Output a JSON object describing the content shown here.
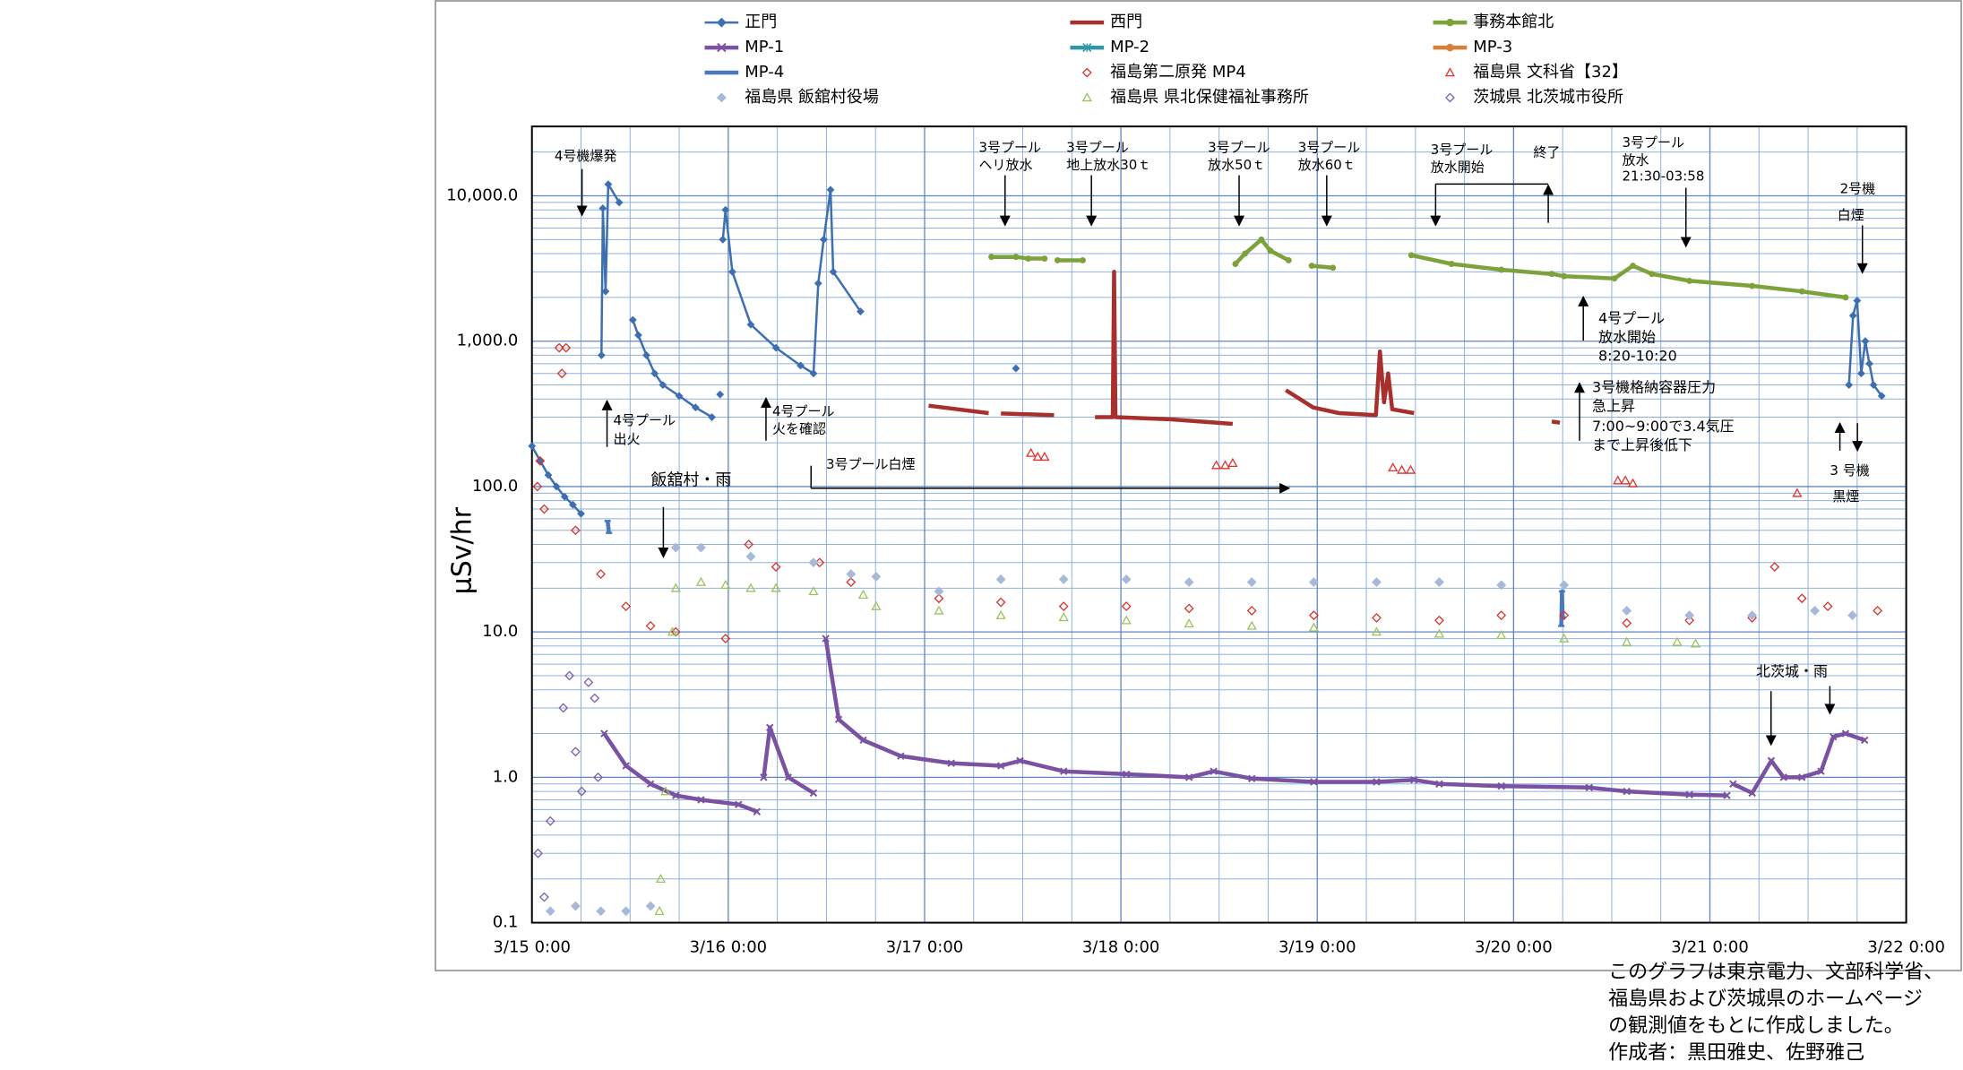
{
  "chart_data": {
    "type": "line",
    "ylabel": "μSv/hr",
    "log_y": true,
    "grid": true,
    "xlim": [
      "3/15 0:00",
      "3/22 0:00"
    ],
    "xticks": [
      "3/15 0:00",
      "3/16 0:00",
      "3/17 0:00",
      "3/18 0:00",
      "3/19 0:00",
      "3/20 0:00",
      "3/21 0:00",
      "3/22 0:00"
    ],
    "xminor": [
      "3/15 6:00",
      "3/15 12:00",
      "3/15 18:00",
      "3/16 6:00",
      "3/16 12:00",
      "3/16 18:00",
      "3/17 6:00",
      "3/17 12:00",
      "3/17 18:00",
      "3/18 6:00",
      "3/18 12:00",
      "3/18 18:00",
      "3/19 6:00",
      "3/19 12:00",
      "3/19 18:00",
      "3/20 6:00",
      "3/20 12:00",
      "3/20 18:00",
      "3/21 6:00",
      "3/21 12:00",
      "3/21 18:00"
    ],
    "ylim": [
      0.1,
      30000
    ],
    "yticks": [
      {
        "value": 0.1,
        "label": "0.1"
      },
      {
        "value": 1,
        "label": "1.0"
      },
      {
        "value": 10,
        "label": "10.0"
      },
      {
        "value": 100,
        "label": "100.0"
      },
      {
        "value": 1000,
        "label": "1,000.0"
      },
      {
        "value": 10000,
        "label": "10,000.0"
      }
    ],
    "yminor": [
      0.2,
      0.3,
      0.4,
      0.5,
      0.6,
      0.7,
      0.8,
      0.9,
      2,
      3,
      4,
      5,
      6,
      7,
      8,
      9,
      20,
      30,
      40,
      50,
      60,
      70,
      80,
      90,
      200,
      300,
      400,
      500,
      600,
      700,
      800,
      900,
      2000,
      3000,
      4000,
      5000,
      6000,
      7000,
      8000,
      9000,
      20000
    ],
    "series": [
      {
        "name": "正門",
        "color": "#3d6fb1",
        "line": true,
        "marker": "diamond",
        "hollow": false,
        "x": [
          "3/15 0:00",
          "3/15 1:00",
          "3/15 2:00",
          "3/15 3:00",
          "3/15 4:00",
          "3/15 5:00",
          "3/15 6:00",
          null,
          "3/15 8:30",
          "3/15 8:40",
          "3/15 9:00",
          "3/15 9:20",
          "3/15 10:40",
          null,
          "3/15 12:20",
          "3/15 13:00",
          "3/15 14:00",
          "3/15 15:00",
          "3/15 16:00",
          "3/15 18:00",
          "3/15 20:00",
          "3/15 22:00",
          null,
          "3/15 23:00",
          null,
          "3/15 23:20",
          "3/15 23:40",
          "3/16 0:30",
          "3/16 2:45",
          "3/16 5:50",
          "3/16 8:50",
          "3/16 10:25",
          "3/16 11:00",
          "3/16 11:40",
          "3/16 12:30",
          "3/16 12:50",
          "3/16 16:10",
          null,
          "3/17 11:10",
          null,
          "3/21 17:00",
          "3/21 17:30",
          "3/21 18:00",
          "3/21 18:30",
          "3/21 19:00",
          "3/21 19:30",
          "3/21 20:00",
          "3/21 21:00"
        ],
        "values": [
          190,
          150,
          120,
          100,
          85,
          75,
          65,
          null,
          800,
          8200,
          2200,
          12000,
          9000,
          null,
          1400,
          1100,
          800,
          600,
          500,
          420,
          350,
          300,
          null,
          430,
          null,
          5000,
          8000,
          3000,
          1300,
          900,
          680,
          600,
          2500,
          5000,
          11000,
          3000,
          1600,
          null,
          650,
          null,
          500,
          1500,
          1900,
          600,
          1000,
          700,
          500,
          420
        ]
      },
      {
        "name": "西門",
        "color": "#a7302c",
        "line": true,
        "marker": "none",
        "hollow": false,
        "x": [
          "3/17 0:30",
          "3/17 4:00",
          "3/17 7:50",
          null,
          "3/17 9:20",
          "3/17 15:50",
          null,
          "3/17 20:50",
          "3/17 23:00",
          "3/17 23:10",
          "3/17 23:20",
          "3/18 6:00",
          "3/18 13:40",
          null,
          "3/18 20:10",
          "3/18 23:30",
          "3/19 2:40",
          "3/19 7:10",
          "3/19 7:40",
          "3/19 8:10",
          "3/19 8:40",
          "3/19 9:10",
          "3/19 11:50",
          null,
          "3/20 4:40",
          "3/20 5:40"
        ],
        "values": [
          360,
          340,
          320,
          null,
          318,
          310,
          null,
          300,
          300,
          3000,
          300,
          290,
          270,
          null,
          460,
          350,
          320,
          310,
          850,
          380,
          600,
          340,
          320,
          null,
          280,
          275
        ]
      },
      {
        "name": "事務本館北",
        "color": "#7ea23b",
        "line": true,
        "marker": "circle",
        "hollow": false,
        "x": [
          "3/17 8:10",
          "3/17 11:10",
          "3/17 12:40",
          "3/17 14:40",
          null,
          "3/17 16:15",
          "3/17 19:20",
          null,
          "3/18 14:00",
          "3/18 15:10",
          "3/18 17:10",
          "3/18 18:15",
          "3/18 20:30",
          null,
          "3/18 23:20",
          "3/19 1:55",
          null,
          "3/19 11:30",
          "3/19 16:25",
          "3/19 22:30",
          "3/20 4:40",
          "3/20 6:10",
          "3/20 12:20",
          "3/20 14:35",
          "3/20 16:55",
          "3/20 21:30",
          "3/21 5:10",
          "3/21 11:15",
          "3/21 16:35"
        ],
        "values": [
          3800,
          3800,
          3700,
          3700,
          null,
          3600,
          3600,
          null,
          3400,
          4000,
          5000,
          4200,
          3600,
          null,
          3300,
          3200,
          null,
          3900,
          3400,
          3100,
          2900,
          2800,
          2700,
          3300,
          2900,
          2600,
          2400,
          2200,
          2000
        ]
      },
      {
        "name": "MP-1",
        "color": "#7a52a1",
        "line": true,
        "marker": "x",
        "hollow": false,
        "x": [
          "3/15 8:50",
          "3/15 11:30",
          "3/15 14:30",
          "3/15 17:35",
          "3/15 20:40",
          "3/16 1:15",
          "3/16 3:30",
          null,
          "3/16 4:20",
          "3/16 5:05",
          "3/16 7:20",
          "3/16 10:25",
          null,
          "3/16 11:55",
          "3/16 13:30",
          "3/16 16:30",
          "3/16 21:05",
          "3/17 3:15",
          "3/17 9:20",
          "3/17 11:40",
          "3/17 17:00",
          "3/18 0:40",
          "3/18 8:20",
          "3/18 11:20",
          "3/18 16:00",
          "3/18 23:35",
          "3/19 7:15",
          "3/19 11:50",
          "3/19 14:55",
          "3/19 22:30",
          "3/20 9:15",
          "3/20 13:50",
          "3/20 21:30",
          "3/21 2:05",
          null,
          "3/21 2:50",
          "3/21 5:10",
          "3/21 7:30",
          "3/21 9:00",
          "3/21 11:15",
          "3/21 13:35",
          "3/21 15:05",
          "3/21 16:35",
          "3/21 18:55"
        ],
        "values": [
          2.0,
          1.2,
          0.9,
          0.75,
          0.7,
          0.65,
          0.58,
          null,
          1.0,
          2.2,
          1.0,
          0.78,
          null,
          9.0,
          2.5,
          1.8,
          1.4,
          1.25,
          1.2,
          1.3,
          1.1,
          1.05,
          1.0,
          1.1,
          0.98,
          0.93,
          0.93,
          0.96,
          0.9,
          0.87,
          0.85,
          0.8,
          0.76,
          0.75,
          null,
          0.9,
          0.78,
          1.3,
          1.0,
          1.0,
          1.1,
          1.9,
          2.0,
          1.8
        ]
      },
      {
        "name": "MP-2",
        "color": "#2f97a6",
        "line": true,
        "marker": "star",
        "hollow": false,
        "x": [],
        "values": []
      },
      {
        "name": "MP-3",
        "color": "#d8803a",
        "line": true,
        "marker": "circle",
        "hollow": false,
        "x": [],
        "values": []
      },
      {
        "name": "MP-4",
        "color": "#4978c0",
        "line": true,
        "marker": "dash",
        "hollow": false,
        "x": [
          "3/15 9:15",
          "3/15 9:25",
          null,
          "3/20 5:50",
          "3/20 5:55",
          "3/20 6:00"
        ],
        "values": [
          58,
          48,
          null,
          11,
          19,
          12.6
        ]
      },
      {
        "name": "福島第二原発 MP4",
        "color": "#d9332b",
        "line": false,
        "marker": "diamond",
        "hollow": true,
        "x": [
          "3/15 0:40",
          "3/15 1:00",
          "3/15 1:30",
          "3/15 3:20",
          "3/15 3:40",
          "3/15 4:10",
          "3/15 5:20",
          "3/15 8:25",
          "3/15 11:30",
          "3/15 14:30",
          "3/15 17:35",
          "3/15 23:40",
          "3/16 2:30",
          "3/16 5:50",
          "3/16 11:10",
          "3/16 15:00",
          "3/17 1:45",
          "3/17 9:20",
          "3/17 17:00",
          "3/18 0:40",
          "3/18 8:20",
          "3/18 16:00",
          "3/18 23:35",
          "3/19 7:15",
          "3/19 14:55",
          "3/19 22:30",
          "3/20 6:10",
          "3/20 13:50",
          "3/20 21:30",
          "3/21 5:10",
          "3/21 7:55",
          "3/21 11:15",
          "3/21 14:25",
          "3/21 20:30"
        ],
        "values": [
          100,
          150,
          70,
          900,
          600,
          900,
          50,
          25,
          15,
          11,
          10,
          9,
          40,
          28,
          30,
          22,
          17,
          16,
          15,
          15,
          14.5,
          14,
          13,
          12.5,
          12,
          13,
          13,
          11.5,
          12,
          12.5,
          28,
          17,
          15,
          14
        ]
      },
      {
        "name": "福島県 文科省【32】",
        "color": "#e03030",
        "line": false,
        "marker": "triangle",
        "hollow": true,
        "x": [
          "3/17 13:00",
          "3/17 13:50",
          "3/17 14:40",
          "3/18 11:40",
          "3/18 12:45",
          "3/18 13:40",
          "3/19 9:15",
          "3/19 10:20",
          "3/19 11:25",
          "3/20 12:45",
          "3/20 13:40",
          "3/20 14:35",
          "3/21 10:40"
        ],
        "values": [
          170,
          160,
          160,
          140,
          140,
          145,
          135,
          130,
          130,
          110,
          110,
          105,
          90
        ]
      },
      {
        "name": "福島県 飯舘村役場",
        "color": "#a7b9d9",
        "line": false,
        "marker": "diamond",
        "hollow": false,
        "x": [
          "3/15 2:15",
          "3/15 5:20",
          "3/15 8:25",
          "3/15 11:30",
          "3/15 14:30",
          "3/15 17:35",
          "3/15 20:40",
          "3/16 2:45",
          "3/16 10:25",
          "3/16 15:00",
          "3/16 18:05",
          "3/17 1:45",
          "3/17 9:20",
          "3/17 17:00",
          "3/18 0:40",
          "3/18 8:20",
          "3/18 16:00",
          "3/18 23:35",
          "3/19 7:15",
          "3/19 14:55",
          "3/19 22:30",
          "3/20 6:10",
          "3/20 13:50",
          "3/20 21:30",
          "3/21 5:10",
          "3/21 12:50",
          "3/21 17:25"
        ],
        "values": [
          0.12,
          0.13,
          0.12,
          0.12,
          0.13,
          38,
          38,
          33,
          30,
          25,
          24,
          19,
          23,
          23,
          23,
          22,
          22,
          22,
          22,
          22,
          21,
          21,
          14,
          13,
          13,
          14,
          13
        ]
      },
      {
        "name": "福島県 県北保健福祉事務所",
        "color": "#9ac35a",
        "line": false,
        "marker": "triangle",
        "hollow": true,
        "x": [
          "3/15 15:35",
          "3/15 15:45",
          "3/15 16:20",
          "3/15 17:10",
          "3/15 17:35",
          "3/15 20:40",
          "3/15 23:40",
          "3/16 2:45",
          "3/16 5:50",
          "3/16 10:25",
          "3/16 16:30",
          "3/16 18:05",
          "3/17 1:45",
          "3/17 9:20",
          "3/17 17:00",
          "3/18 0:40",
          "3/18 8:20",
          "3/18 16:00",
          "3/18 23:35",
          "3/19 7:15",
          "3/19 14:55",
          "3/19 22:30",
          "3/20 6:10",
          "3/20 13:50",
          "3/20 20:00",
          "3/20 22:15"
        ],
        "values": [
          0.12,
          0.2,
          0.8,
          10,
          20,
          22,
          21,
          20,
          20,
          19,
          18,
          15,
          14,
          13,
          12.6,
          12,
          11.4,
          11,
          10.7,
          10,
          9.7,
          9.5,
          9,
          8.5,
          8.5,
          8.3
        ]
      },
      {
        "name": "茨城県 北茨城市役所",
        "color": "#7a5fb0",
        "line": false,
        "marker": "diamond",
        "hollow": true,
        "x": [
          "3/15 0:45",
          "3/15 1:30",
          "3/15 2:15",
          "3/15 3:50",
          "3/15 4:35",
          "3/15 5:20",
          "3/15 6:05",
          "3/15 6:55",
          "3/15 7:40",
          "3/15 8:05"
        ],
        "values": [
          0.3,
          0.15,
          0.5,
          3.0,
          5.0,
          1.5,
          0.8,
          4.5,
          3.5,
          1.0
        ]
      }
    ],
    "annotations": [
      [
        "4号機爆発"
      ],
      [
        "4号プール",
        "出火"
      ],
      [
        "4号プール",
        "火を確認"
      ],
      [
        "3号プール白煙"
      ],
      [
        "飯舘村・雨"
      ],
      [
        "3号プール",
        "ヘリ放水"
      ],
      [
        "3号プール",
        "地上放水30ｔ"
      ],
      [
        "3号プール",
        "放水50ｔ"
      ],
      [
        "3号プール",
        "放水60ｔ"
      ],
      [
        "3号プール",
        "放水開始"
      ],
      [
        "終了"
      ],
      [
        "3号プール",
        "放水",
        "21:30-03:58"
      ],
      [
        "2号機",
        "白煙"
      ],
      [
        "4号プール",
        "放水開始",
        "8:20-10:20"
      ],
      [
        "3号機格納容器圧力",
        "急上昇",
        "7:00~9:00で3.4気圧",
        "まで上昇後低下"
      ],
      [
        "3 号機",
        "黒煙"
      ],
      [
        "北茨城・雨"
      ]
    ],
    "note": [
      "このグラフは東京電力、文部科学省、",
      "福島県および茨城県のホームページ",
      "の観測値をもとに作成しました。",
      "作成者：黒田雅史、佐野雅己"
    ]
  }
}
